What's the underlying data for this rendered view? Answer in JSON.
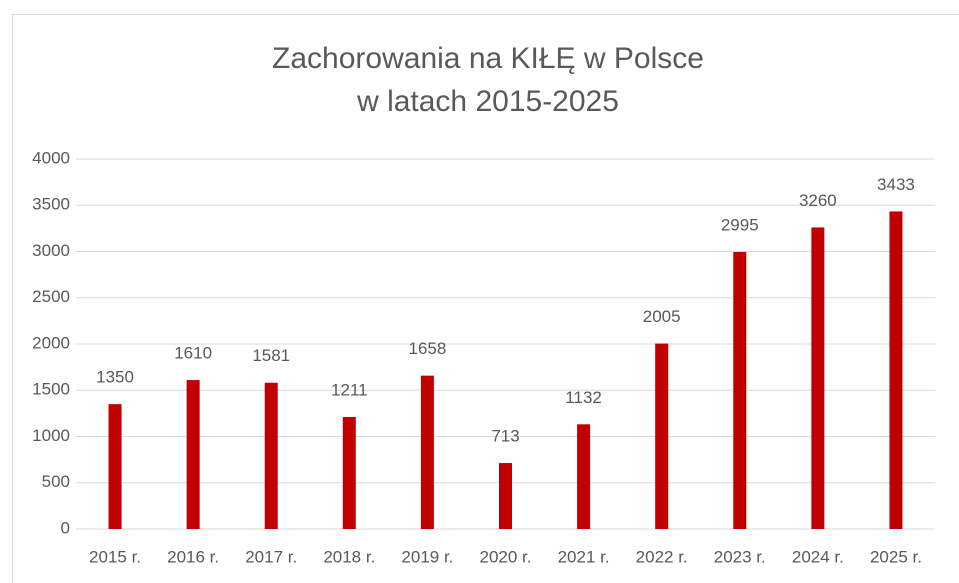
{
  "chart_data": {
    "type": "bar",
    "title": "Zachorowania na KIŁĘ w Polsce",
    "subtitle": "w latach 2015-2025",
    "categories": [
      "2015 r.",
      "2016 r.",
      "2017 r.",
      "2018 r.",
      "2019 r.",
      "2020 r.",
      "2021 r.",
      "2022 r.",
      "2023 r.",
      "2024 r.",
      "2025 r."
    ],
    "values": [
      1350,
      1610,
      1581,
      1211,
      1658,
      713,
      1132,
      2005,
      2995,
      3260,
      3433
    ],
    "color": "#c00000",
    "ylim": [
      0,
      4000
    ],
    "yticks": [
      0,
      500,
      1000,
      1500,
      2000,
      2500,
      3000,
      3500,
      4000
    ],
    "grid": true,
    "data_labels": true
  }
}
